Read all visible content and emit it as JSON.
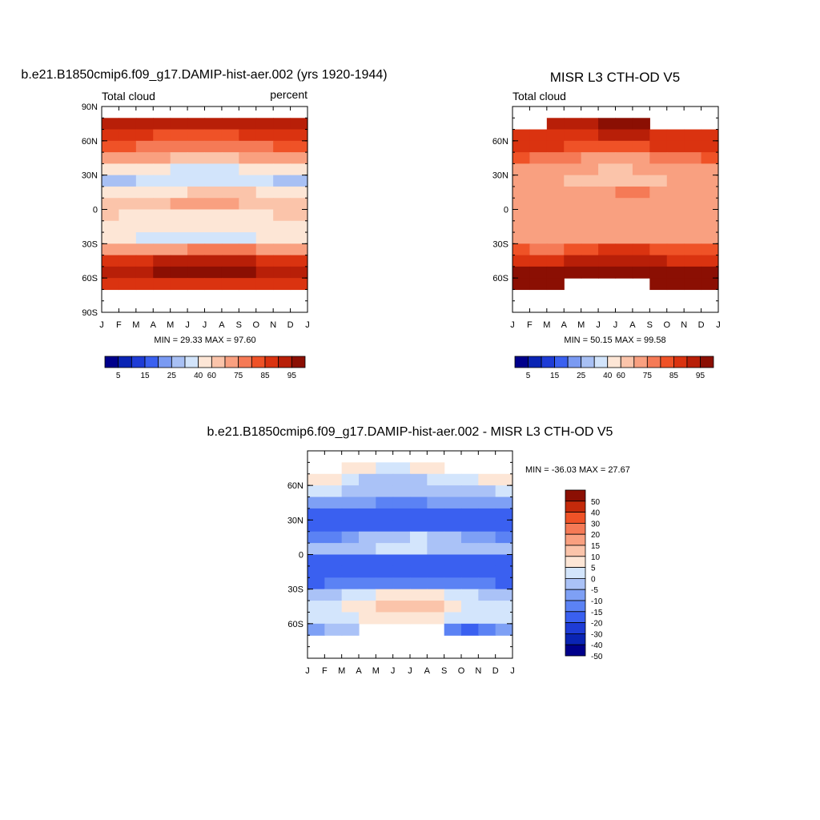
{
  "chart_data": [
    {
      "type": "heatmap",
      "title": "b.e21.B1850cmip6.f09_g17.DAMIP-hist-aer.002 (yrs 1920-1944)",
      "left_label": "Total cloud",
      "right_label": "percent",
      "x_ticks": [
        "J",
        "F",
        "M",
        "A",
        "M",
        "J",
        "J",
        "A",
        "S",
        "O",
        "N",
        "D",
        "J"
      ],
      "y_ticks": [
        "90N",
        "60N",
        "30N",
        "0",
        "30S",
        "60S",
        "90S"
      ],
      "ylim": [
        -90,
        90
      ],
      "stats": "MIN =  29.33 MAX =  97.60",
      "months": [
        "J",
        "F",
        "M",
        "A",
        "M",
        "J",
        "J",
        "A",
        "S",
        "O",
        "N",
        "D"
      ],
      "lat_bands": [
        75,
        65,
        55,
        45,
        35,
        25,
        15,
        5,
        -5,
        -15,
        -25,
        -35,
        -45,
        -55,
        -65,
        -75
      ],
      "values": [
        [
          85,
          85,
          85,
          85,
          86,
          88,
          88,
          86,
          85,
          85,
          85,
          85
        ],
        [
          82,
          83,
          80,
          78,
          76,
          76,
          76,
          78,
          80,
          80,
          82,
          82
        ],
        [
          78,
          78,
          74,
          72,
          70,
          70,
          70,
          70,
          72,
          74,
          76,
          78
        ],
        [
          65,
          65,
          62,
          60,
          58,
          58,
          58,
          58,
          60,
          62,
          64,
          65
        ],
        [
          45,
          45,
          42,
          40,
          38,
          38,
          38,
          38,
          40,
          42,
          44,
          45
        ],
        [
          28,
          28,
          30,
          32,
          32,
          33,
          33,
          32,
          30,
          30,
          28,
          28
        ],
        [
          40,
          40,
          42,
          45,
          48,
          52,
          55,
          55,
          52,
          48,
          44,
          40
        ],
        [
          58,
          55,
          55,
          55,
          60,
          62,
          62,
          60,
          58,
          55,
          55,
          58
        ],
        [
          50,
          48,
          46,
          44,
          44,
          44,
          44,
          45,
          46,
          48,
          50,
          52
        ],
        [
          42,
          42,
          42,
          42,
          42,
          42,
          42,
          42,
          42,
          42,
          42,
          42
        ],
        [
          40,
          40,
          38,
          38,
          38,
          38,
          38,
          38,
          38,
          40,
          40,
          40
        ],
        [
          68,
          66,
          66,
          66,
          68,
          72,
          74,
          72,
          70,
          68,
          68,
          68
        ],
        [
          82,
          82,
          84,
          86,
          88,
          88,
          88,
          88,
          86,
          84,
          82,
          82
        ],
        [
          86,
          86,
          88,
          90,
          90,
          90,
          90,
          90,
          90,
          88,
          86,
          86
        ],
        [
          80,
          80,
          80,
          80,
          80,
          80,
          80,
          80,
          80,
          80,
          80,
          80
        ],
        [
          null,
          null,
          null,
          null,
          null,
          null,
          null,
          null,
          null,
          null,
          null,
          null
        ]
      ],
      "colorbar_labels": [
        "5",
        "15",
        "25",
        "40",
        "60",
        "75",
        "85",
        "95"
      ]
    },
    {
      "type": "heatmap",
      "title": "MISR L3 CTH-OD V5",
      "left_label": "Total cloud",
      "x_ticks": [
        "J",
        "F",
        "M",
        "A",
        "M",
        "J",
        "J",
        "A",
        "S",
        "O",
        "N",
        "D",
        "J"
      ],
      "y_ticks": [
        "60N",
        "30N",
        "0",
        "30S",
        "60S"
      ],
      "ylim": [
        -90,
        90
      ],
      "stats": "MIN =  50.15 MAX =  99.58",
      "months": [
        "J",
        "F",
        "M",
        "A",
        "M",
        "J",
        "J",
        "A",
        "S",
        "O",
        "N",
        "D"
      ],
      "lat_bands": [
        75,
        65,
        55,
        45,
        35,
        25,
        15,
        5,
        -5,
        -15,
        -25,
        -35,
        -45,
        -55,
        -65,
        -75
      ],
      "values": [
        [
          null,
          null,
          88,
          88,
          88,
          90,
          90,
          90,
          null,
          null,
          null,
          null
        ],
        [
          82,
          82,
          84,
          84,
          84,
          86,
          86,
          86,
          84,
          82,
          82,
          80
        ],
        [
          80,
          80,
          80,
          78,
          76,
          76,
          76,
          78,
          80,
          80,
          80,
          80
        ],
        [
          75,
          74,
          72,
          70,
          68,
          68,
          68,
          68,
          70,
          72,
          74,
          75
        ],
        [
          68,
          66,
          64,
          62,
          60,
          58,
          58,
          60,
          62,
          64,
          66,
          68
        ],
        [
          62,
          62,
          60,
          58,
          56,
          55,
          55,
          56,
          58,
          60,
          62,
          62
        ],
        [
          60,
          60,
          62,
          64,
          66,
          68,
          70,
          70,
          68,
          66,
          62,
          60
        ],
        [
          66,
          64,
          62,
          62,
          64,
          66,
          66,
          66,
          64,
          64,
          64,
          66
        ],
        [
          62,
          62,
          62,
          62,
          62,
          62,
          62,
          62,
          62,
          62,
          62,
          62
        ],
        [
          65,
          65,
          62,
          60,
          60,
          60,
          60,
          60,
          60,
          62,
          64,
          65
        ],
        [
          66,
          66,
          66,
          66,
          66,
          66,
          66,
          66,
          66,
          66,
          66,
          66
        ],
        [
          75,
          74,
          74,
          76,
          78,
          80,
          82,
          80,
          78,
          76,
          75,
          75
        ],
        [
          84,
          84,
          84,
          86,
          88,
          88,
          88,
          88,
          86,
          84,
          84,
          84
        ],
        [
          92,
          90,
          90,
          92,
          94,
          94,
          94,
          94,
          92,
          92,
          92,
          92
        ],
        [
          94,
          94,
          94,
          null,
          null,
          null,
          null,
          null,
          94,
          94,
          94,
          94
        ],
        [
          null,
          null,
          null,
          null,
          null,
          null,
          null,
          null,
          null,
          null,
          null,
          null
        ]
      ],
      "colorbar_labels": [
        "5",
        "15",
        "25",
        "40",
        "60",
        "75",
        "85",
        "95"
      ]
    },
    {
      "type": "heatmap",
      "title": "b.e21.B1850cmip6.f09_g17.DAMIP-hist-aer.002 - MISR L3 CTH-OD V5",
      "x_ticks": [
        "J",
        "F",
        "M",
        "A",
        "M",
        "J",
        "J",
        "A",
        "S",
        "O",
        "N",
        "D",
        "J"
      ],
      "y_ticks": [
        "60N",
        "30N",
        "0",
        "30S",
        "60S"
      ],
      "ylim": [
        -90,
        90
      ],
      "stats": "MIN = -36.03 MAX =  27.67",
      "months": [
        "J",
        "F",
        "M",
        "A",
        "M",
        "J",
        "J",
        "A",
        "S",
        "O",
        "N",
        "D"
      ],
      "lat_bands": [
        75,
        65,
        55,
        45,
        35,
        25,
        15,
        5,
        -5,
        -15,
        -25,
        -35,
        -45,
        -55,
        -65,
        -75
      ],
      "values": [
        [
          null,
          null,
          2,
          2,
          -2,
          -2,
          2,
          2,
          null,
          null,
          null,
          null
        ],
        [
          2,
          2,
          -4,
          -6,
          -8,
          -8,
          -6,
          -4,
          -4,
          -2,
          2,
          2
        ],
        [
          -4,
          -4,
          -6,
          -8,
          -8,
          -8,
          -8,
          -8,
          -8,
          -6,
          -6,
          -4
        ],
        [
          -12,
          -12,
          -14,
          -14,
          -16,
          -16,
          -16,
          -14,
          -14,
          -12,
          -12,
          -12
        ],
        [
          -24,
          -22,
          -22,
          -24,
          -26,
          -26,
          -26,
          -24,
          -24,
          -22,
          -22,
          -24
        ],
        [
          -30,
          -28,
          -28,
          -28,
          -30,
          -30,
          -30,
          -28,
          -26,
          -26,
          -26,
          -28
        ],
        [
          -18,
          -16,
          -12,
          -10,
          -8,
          -6,
          -4,
          -6,
          -8,
          -12,
          -14,
          -18
        ],
        [
          -8,
          -8,
          -6,
          -6,
          -4,
          -4,
          -4,
          -6,
          -6,
          -6,
          -8,
          -8
        ],
        [
          -24,
          -24,
          -24,
          -26,
          -26,
          -26,
          -26,
          -28,
          -28,
          -28,
          -26,
          -24
        ],
        [
          -26,
          -24,
          -22,
          -22,
          -24,
          -24,
          -24,
          -26,
          -28,
          -28,
          -26,
          -26
        ],
        [
          -22,
          -20,
          -18,
          -18,
          -18,
          -18,
          -18,
          -18,
          -18,
          -18,
          -20,
          -22
        ],
        [
          -6,
          -6,
          -4,
          -2,
          0,
          2,
          2,
          0,
          -2,
          -4,
          -6,
          -6
        ],
        [
          -2,
          -2,
          2,
          4,
          6,
          8,
          8,
          6,
          2,
          -2,
          -2,
          -2
        ],
        [
          -4,
          -4,
          -2,
          2,
          4,
          4,
          4,
          2,
          -4,
          -4,
          -4,
          -4
        ],
        [
          -12,
          -10,
          -8,
          null,
          null,
          null,
          null,
          null,
          -18,
          -30,
          -20,
          -14
        ],
        [
          null,
          null,
          null,
          null,
          null,
          null,
          null,
          null,
          null,
          null,
          null,
          null
        ]
      ],
      "colorbar_labels": [
        "50",
        "40",
        "30",
        "20",
        "15",
        "10",
        "5",
        "0",
        "-5",
        "-10",
        "-15",
        "-20",
        "-30",
        "-40",
        "-50"
      ]
    }
  ],
  "colors": {
    "abs_scale": [
      "#00008b",
      "#0a24b4",
      "#1e3cd6",
      "#3a60f0",
      "#7a9af2",
      "#a8c0f4",
      "#d2e4fb",
      "#fde6d6",
      "#fbc4aa",
      "#f9a080",
      "#f57a56",
      "#ef5227",
      "#da3310",
      "#b81f08",
      "#8b0f03"
    ],
    "diff_scale": [
      "#00008b",
      "#0a24b4",
      "#1e3cd6",
      "#3a60f0",
      "#5b82f4",
      "#7ea0f5",
      "#aac2f7",
      "#d3e5fc",
      "#fde6d6",
      "#fbc4aa",
      "#f9a080",
      "#f57a56",
      "#ef5227",
      "#c42a0b",
      "#8b0f03"
    ]
  }
}
